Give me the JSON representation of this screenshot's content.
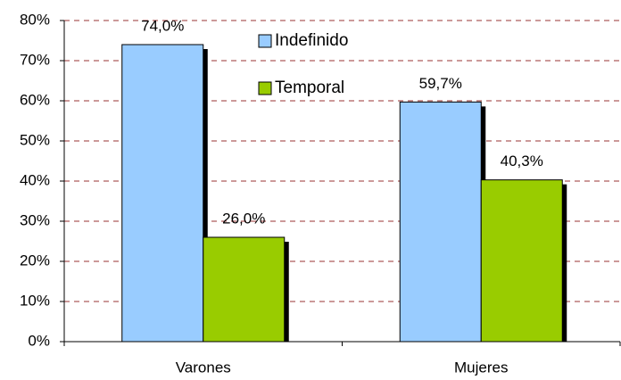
{
  "chart_data": {
    "type": "bar",
    "categories": [
      "Varones",
      "Mujeres"
    ],
    "series": [
      {
        "name": "Indefinido",
        "color": "#99ccff",
        "values": [
          74.0,
          59.7
        ],
        "value_labels": [
          "74,0%",
          "59,7%"
        ]
      },
      {
        "name": "Temporal",
        "color": "#99cc00",
        "values": [
          26.0,
          40.3
        ],
        "value_labels": [
          "26,0%",
          "40,3%"
        ]
      }
    ],
    "ylim": [
      0,
      80
    ],
    "yticks": [
      {
        "value": 0,
        "label": "0%"
      },
      {
        "value": 10,
        "label": "10%"
      },
      {
        "value": 20,
        "label": "20%"
      },
      {
        "value": 30,
        "label": "30%"
      },
      {
        "value": 40,
        "label": "40%"
      },
      {
        "value": 50,
        "label": "50%"
      },
      {
        "value": 60,
        "label": "60%"
      },
      {
        "value": 70,
        "label": "70%"
      },
      {
        "value": 80,
        "label": "80%"
      }
    ],
    "grid": true,
    "legend": "top"
  }
}
